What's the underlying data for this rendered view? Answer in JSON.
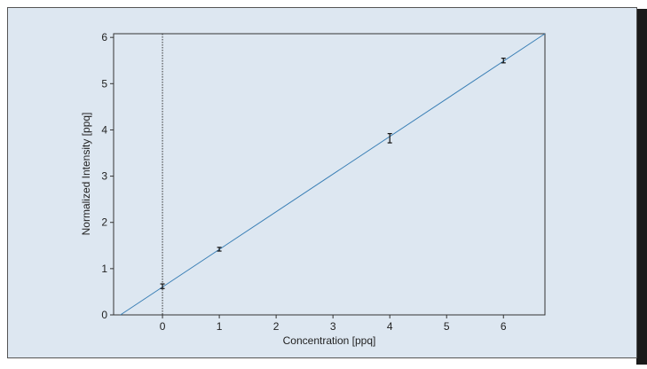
{
  "chart_data": {
    "type": "scatter",
    "x_label": "Concentration [ppq]",
    "y_label": "Normalized Intensity [ppq]",
    "xlim": [
      -0.86,
      6.73
    ],
    "ylim": [
      0,
      6.08
    ],
    "xticks": [
      0,
      1,
      2,
      3,
      4,
      5,
      6
    ],
    "yticks": [
      0,
      1,
      2,
      3,
      4,
      5,
      6
    ],
    "vline": 0,
    "series": [
      {
        "x": [
          0,
          1,
          4,
          6
        ],
        "values": [
          0.62,
          1.42,
          3.82,
          5.5
        ],
        "errors": [
          0.05,
          0.04,
          0.1,
          0.05
        ],
        "color": "#111111"
      }
    ],
    "fit": {
      "x": [
        -0.74,
        6.73
      ],
      "values": [
        0,
        6.08
      ],
      "color": "#3a7fb5"
    }
  }
}
